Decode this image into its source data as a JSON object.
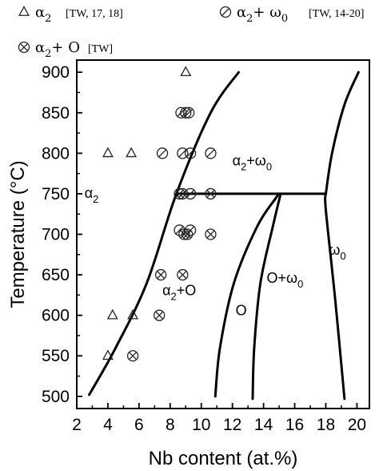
{
  "chart_data": {
    "type": "scatter",
    "xlabel": "Nb content (at.%)",
    "ylabel": "Temperature (°C)",
    "xlim": [
      2,
      20.8
    ],
    "ylim": [
      485,
      915
    ],
    "x_ticks": [
      "2",
      "4",
      "6",
      "8",
      "10",
      "12",
      "14",
      "16",
      "18",
      "20"
    ],
    "y_ticks": [
      "500",
      "550",
      "600",
      "650",
      "700",
      "750",
      "800",
      "850",
      "900"
    ],
    "legend": [
      {
        "marker": "triangle",
        "phase": "α2",
        "ref": "[TW, 17, 18]"
      },
      {
        "marker": "slashed-circle",
        "phase": "α2+ ω0",
        "ref": "[TW, 14-20]"
      },
      {
        "marker": "crossed-circle",
        "phase": "α2+ O",
        "ref": "[TW]"
      }
    ],
    "series": [
      {
        "name": "α2 [TW, 17, 18]",
        "marker": "triangle",
        "points": [
          [
            9.0,
            900
          ],
          [
            4.0,
            800
          ],
          [
            5.5,
            800
          ],
          [
            4.3,
            600
          ],
          [
            5.6,
            600
          ],
          [
            4.0,
            550
          ]
        ]
      },
      {
        "name": "α2+ ω0 [TW, 14-20]",
        "marker": "slashed-circle",
        "points": [
          [
            8.7,
            850
          ],
          [
            9.0,
            850
          ],
          [
            9.2,
            850
          ],
          [
            7.5,
            800
          ],
          [
            8.8,
            800
          ],
          [
            9.3,
            800
          ],
          [
            10.6,
            800
          ],
          [
            8.8,
            750
          ],
          [
            9.3,
            750
          ],
          [
            8.6,
            705
          ],
          [
            9.3,
            705
          ]
        ]
      },
      {
        "name": "α2+ O [TW]",
        "marker": "crossed-circle",
        "points": [
          [
            8.6,
            750
          ],
          [
            10.6,
            750
          ],
          [
            8.9,
            700
          ],
          [
            9.1,
            700
          ],
          [
            10.6,
            700
          ],
          [
            7.4,
            650
          ],
          [
            8.8,
            650
          ],
          [
            7.3,
            600
          ],
          [
            5.6,
            550
          ]
        ]
      }
    ],
    "boundaries": [
      {
        "id": "alpha2-solvus",
        "points": [
          [
            2.8,
            502
          ],
          [
            4.5,
            560
          ],
          [
            6.5,
            640
          ],
          [
            8.4,
            750
          ],
          [
            10.6,
            850
          ],
          [
            12.4,
            900
          ]
        ]
      },
      {
        "id": "alpha2-omega0-eutectoid",
        "points": [
          [
            8.4,
            750
          ],
          [
            18.0,
            750
          ]
        ]
      },
      {
        "id": "O-left",
        "points": [
          [
            10.9,
            500
          ],
          [
            11.2,
            560
          ],
          [
            12.1,
            640
          ],
          [
            13.6,
            710
          ],
          [
            14.8,
            745
          ],
          [
            15.0,
            750
          ]
        ]
      },
      {
        "id": "O-right",
        "points": [
          [
            13.3,
            497
          ],
          [
            13.4,
            560
          ],
          [
            13.8,
            640
          ],
          [
            14.6,
            710
          ],
          [
            15.1,
            750
          ]
        ]
      },
      {
        "id": "omega0-boundary",
        "points": [
          [
            18.0,
            750
          ],
          [
            18.0,
            730
          ],
          [
            18.6,
            620
          ],
          [
            19.2,
            497
          ]
        ]
      },
      {
        "id": "omega0-top",
        "points": [
          [
            18.0,
            750
          ],
          [
            18.4,
            800
          ],
          [
            19.2,
            860
          ],
          [
            20.1,
            900
          ]
        ]
      }
    ],
    "regions": [
      {
        "label_base": "α",
        "label_sub": "2",
        "label_sup": "",
        "x": 2.5,
        "y": 745
      },
      {
        "label_base": "α",
        "label_sub": "2",
        "label_sup": "+ω0",
        "x": 12.0,
        "y": 785
      },
      {
        "label_base": "α",
        "label_sub": "2",
        "label_sup": "+O",
        "x": 7.5,
        "y": 625
      },
      {
        "label_base": "O",
        "label_sub": "",
        "label_sup": "",
        "x": 12.2,
        "y": 600
      },
      {
        "label_base": "O+ω",
        "label_sub": "0",
        "label_sup": "",
        "x": 14.2,
        "y": 640
      },
      {
        "label_base": "ω",
        "label_sub": "0",
        "label_sup": "",
        "x": 18.2,
        "y": 675
      }
    ]
  }
}
